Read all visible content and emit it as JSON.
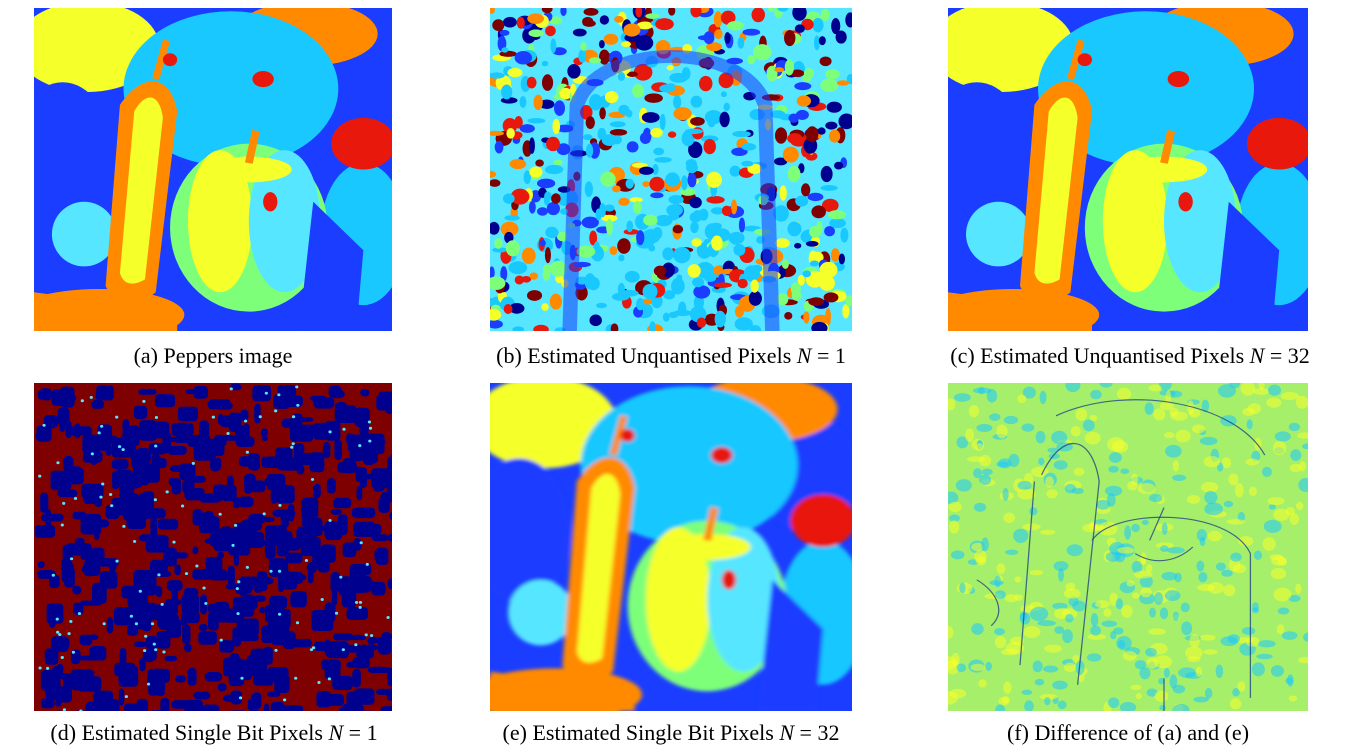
{
  "figure": {
    "panels": [
      {
        "id": "a",
        "label": "(a)",
        "text": "Peppers image",
        "math": "",
        "style": "peppers"
      },
      {
        "id": "b",
        "label": "(b)",
        "text": "Estimated Unquantised Pixels",
        "math": "N",
        "math_value": "1",
        "style": "noise"
      },
      {
        "id": "c",
        "label": "(c)",
        "text": "Estimated Unquantised Pixels",
        "math": "N",
        "math_value": "32",
        "style": "peppers"
      },
      {
        "id": "d",
        "label": "(d)",
        "text": "Estimated Single Bit Pixels",
        "math": "N",
        "math_value": "1",
        "style": "binary"
      },
      {
        "id": "e",
        "label": "(e)",
        "text": "Estimated Single Bit Pixels",
        "math": "N",
        "math_value": "32",
        "style": "peppers-blur"
      },
      {
        "id": "f",
        "label": "(f)",
        "text": "Difference of (a) and (e)",
        "math": "",
        "style": "difference"
      }
    ],
    "colors": {
      "jet_dark_blue": "#00008f",
      "jet_blue": "#1a3dff",
      "jet_cyan": "#19c8ff",
      "jet_light_cyan": "#57e6ff",
      "jet_green": "#7dff7a",
      "jet_yellow": "#f5ff2a",
      "jet_orange": "#ff8a00",
      "jet_red": "#e8180c",
      "jet_dark_red": "#7f0000"
    }
  }
}
